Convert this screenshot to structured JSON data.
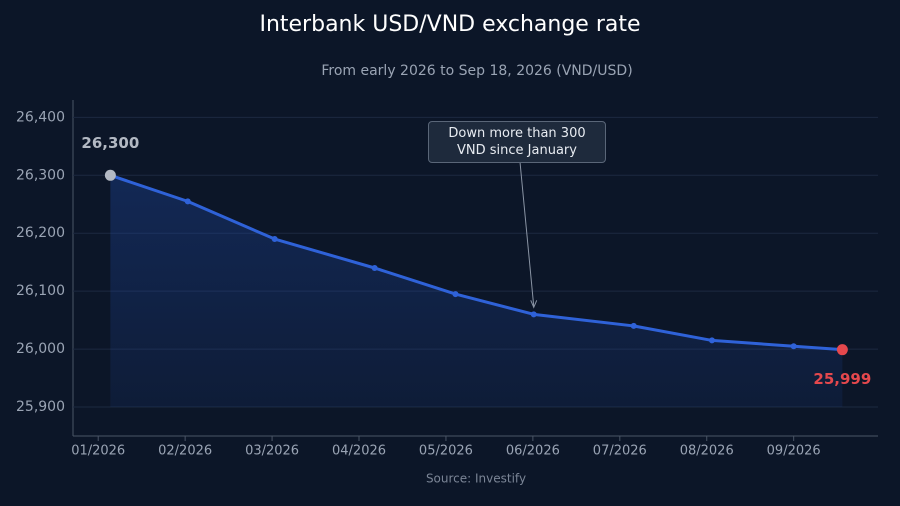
{
  "chart_data": {
    "type": "line",
    "title": "Interbank USD/VND exchange rate",
    "subtitle": "From early 2026 to Sep 18, 2026 (VND/USD)",
    "source": "Source: Investify",
    "annotation": "Down more than 300 VND since January",
    "x": [
      1.14,
      2.03,
      3.03,
      4.18,
      5.11,
      6.01,
      7.16,
      8.06,
      9.0,
      9.56
    ],
    "series": [
      {
        "name": "USD/VND",
        "color": "#2f62d8",
        "values": [
          26300,
          26255,
          26190,
          26140,
          26095,
          26060,
          26040,
          26015,
          26005,
          25999
        ],
        "value_labels": [
          "26,300",
          null,
          null,
          null,
          null,
          null,
          null,
          null,
          null,
          "25,999"
        ]
      }
    ],
    "xlim": [
      0.71,
      9.97
    ],
    "xticks": [
      {
        "value": 1,
        "label": "01/2026"
      },
      {
        "value": 2,
        "label": "02/2026"
      },
      {
        "value": 3,
        "label": "03/2026"
      },
      {
        "value": 4,
        "label": "04/2026"
      },
      {
        "value": 5,
        "label": "05/2026"
      },
      {
        "value": 6,
        "label": "06/2026"
      },
      {
        "value": 7,
        "label": "07/2026"
      },
      {
        "value": 8,
        "label": "08/2026"
      },
      {
        "value": 9,
        "label": "09/2026"
      }
    ],
    "ylim": [
      25850,
      26430
    ],
    "yticks": [
      {
        "value": 25900,
        "label": "25,900"
      },
      {
        "value": 26000,
        "label": "26,000"
      },
      {
        "value": 26100,
        "label": "26,100"
      },
      {
        "value": 26200,
        "label": "26,200"
      },
      {
        "value": 26300,
        "label": "26,300"
      },
      {
        "value": 26400,
        "label": "26,400"
      }
    ],
    "grid": true,
    "start_color": "#b3b9c3",
    "end_color": "#e5484d"
  }
}
